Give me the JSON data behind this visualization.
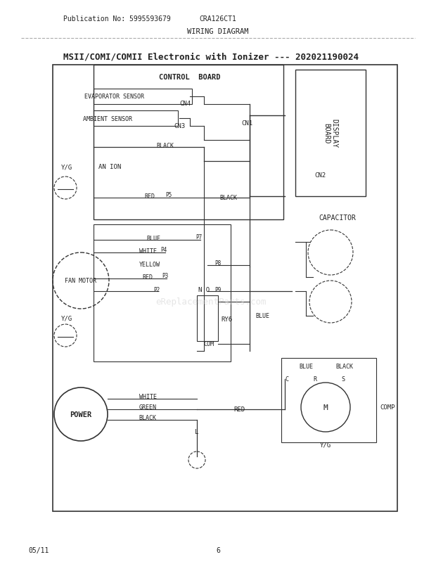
{
  "title": "MSII/COMI/COMII Electronic with Ionizer --- 202021190024",
  "pub_no": "Publication No: 5995593679",
  "model": "CRA126CT1",
  "diagram_type": "WIRING DIAGRAM",
  "footer_left": "05/11",
  "footer_center": "6",
  "bg_color": "#ffffff",
  "line_color": "#333333",
  "text_color": "#222222",
  "watermark": "eReplacementParts.com"
}
